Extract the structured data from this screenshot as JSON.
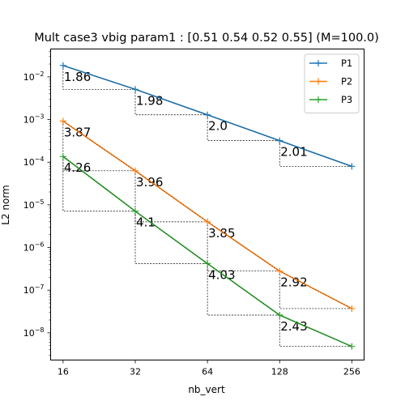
{
  "chart_data": {
    "type": "line",
    "title": "Mult case3 vbig param1 : [0.51 0.54 0.52 0.55] (M=100.0)",
    "xlabel": "nb_vert",
    "ylabel": "L2 norm",
    "xscale": "log2",
    "yscale": "log10",
    "x": [
      16,
      32,
      64,
      128,
      256
    ],
    "xticks": [
      "16",
      "32",
      "64",
      "128",
      "256"
    ],
    "xlim": [
      14.2,
      288
    ],
    "ylim": [
      2.3e-09,
      0.045
    ],
    "yticks": [
      {
        "exp": -8,
        "label": "10",
        "sup": "−8"
      },
      {
        "exp": -7,
        "label": "10",
        "sup": "−7"
      },
      {
        "exp": -6,
        "label": "10",
        "sup": "−6"
      },
      {
        "exp": -5,
        "label": "10",
        "sup": "−5"
      },
      {
        "exp": -4,
        "label": "10",
        "sup": "−4"
      },
      {
        "exp": -3,
        "label": "10",
        "sup": "−3"
      },
      {
        "exp": -2,
        "label": "10",
        "sup": "−2"
      }
    ],
    "grid": false,
    "legend_position": "top-right",
    "series": [
      {
        "name": "P1",
        "color": "#1f77b4",
        "overlay_color": "#1a5276",
        "values": [
          0.0185,
          0.0051,
          0.00129,
          0.00032,
          8e-05
        ],
        "rates": [
          "1.86",
          "1.98",
          "2.0",
          "2.01"
        ]
      },
      {
        "name": "P2",
        "color": "#ff7f0e",
        "overlay_color": "#8c3b0a",
        "values": [
          0.00092,
          6.3e-05,
          4e-06,
          2.8e-07,
          3.7e-08
        ],
        "rates": [
          "3.87",
          "3.96",
          "3.85",
          "2.92"
        ]
      },
      {
        "name": "P3",
        "color": "#2ca02c",
        "overlay_color": "#1b5e20",
        "values": [
          0.000136,
          7.1e-06,
          4.2e-07,
          2.6e-08,
          4.8e-09
        ],
        "rates": [
          "4.26",
          "4.1",
          "4.03",
          "2.43"
        ]
      }
    ]
  }
}
